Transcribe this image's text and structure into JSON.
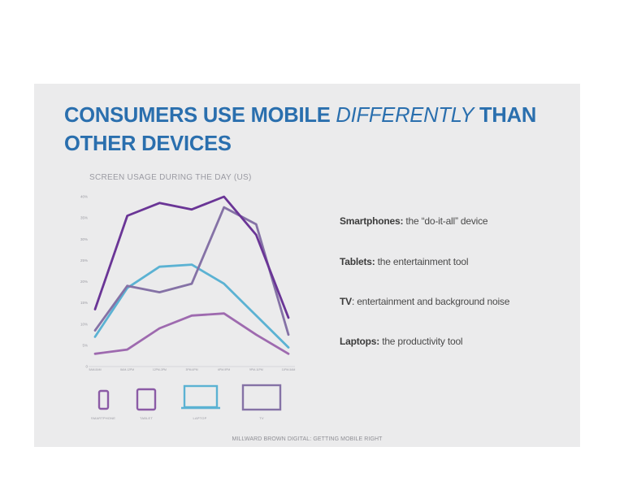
{
  "slide": {
    "title_part1": "CONSUMERS USE MOBILE ",
    "title_emphasis": "DIFFERENTLY",
    "title_part2": " THAN OTHER DEVICES",
    "source": "MILLWARD BROWN DIGITAL: GETTING MOBILE RIGHT"
  },
  "descriptions": [
    {
      "term": "Smartphones:",
      "text": " the “do-it-all” device"
    },
    {
      "term": "Tablets:",
      "text": " the entertainment tool"
    },
    {
      "term": "TV",
      "text": ": entertainment and background noise"
    },
    {
      "term": "Laptops:",
      "text": " the productivity tool"
    }
  ],
  "devices": [
    {
      "icon": "smartphone-icon",
      "label": "SMARTPHONE"
    },
    {
      "icon": "tablet-icon",
      "label": "TABLET"
    },
    {
      "icon": "laptop-icon",
      "label": "LAPTOP"
    },
    {
      "icon": "tv-icon",
      "label": "TV"
    }
  ],
  "chart_data": {
    "type": "line",
    "title": "SCREEN USAGE DURING THE DAY (US)",
    "x": [
      "5AM-8AM",
      "8AM-12PM",
      "12PM-3PM",
      "3PM-6PM",
      "6PM-9PM",
      "9PM-11PM",
      "11PM-5AM"
    ],
    "yticks": [
      "0",
      "5%",
      "10%",
      "15%",
      "20%",
      "25%",
      "30%",
      "35%",
      "40%"
    ],
    "ylim": [
      0,
      40
    ],
    "grid": false,
    "series": [
      {
        "name": "SMARTPHONE",
        "color": "#6a3596",
        "values": [
          13.5,
          35.5,
          38.5,
          37,
          40,
          31,
          11.5
        ]
      },
      {
        "name": "TABLET",
        "color": "#8572a6",
        "values": [
          8.5,
          19,
          17.5,
          19.5,
          37.5,
          33.5,
          7.5
        ]
      },
      {
        "name": "LAPTOP",
        "color": "#5bb2d3",
        "values": [
          7,
          18.5,
          23.5,
          24,
          19.5,
          12,
          4.5
        ]
      },
      {
        "name": "TV",
        "color": "#9e6aaf",
        "values": [
          3,
          4,
          9,
          12,
          12.5,
          7.5,
          3
        ]
      }
    ]
  }
}
